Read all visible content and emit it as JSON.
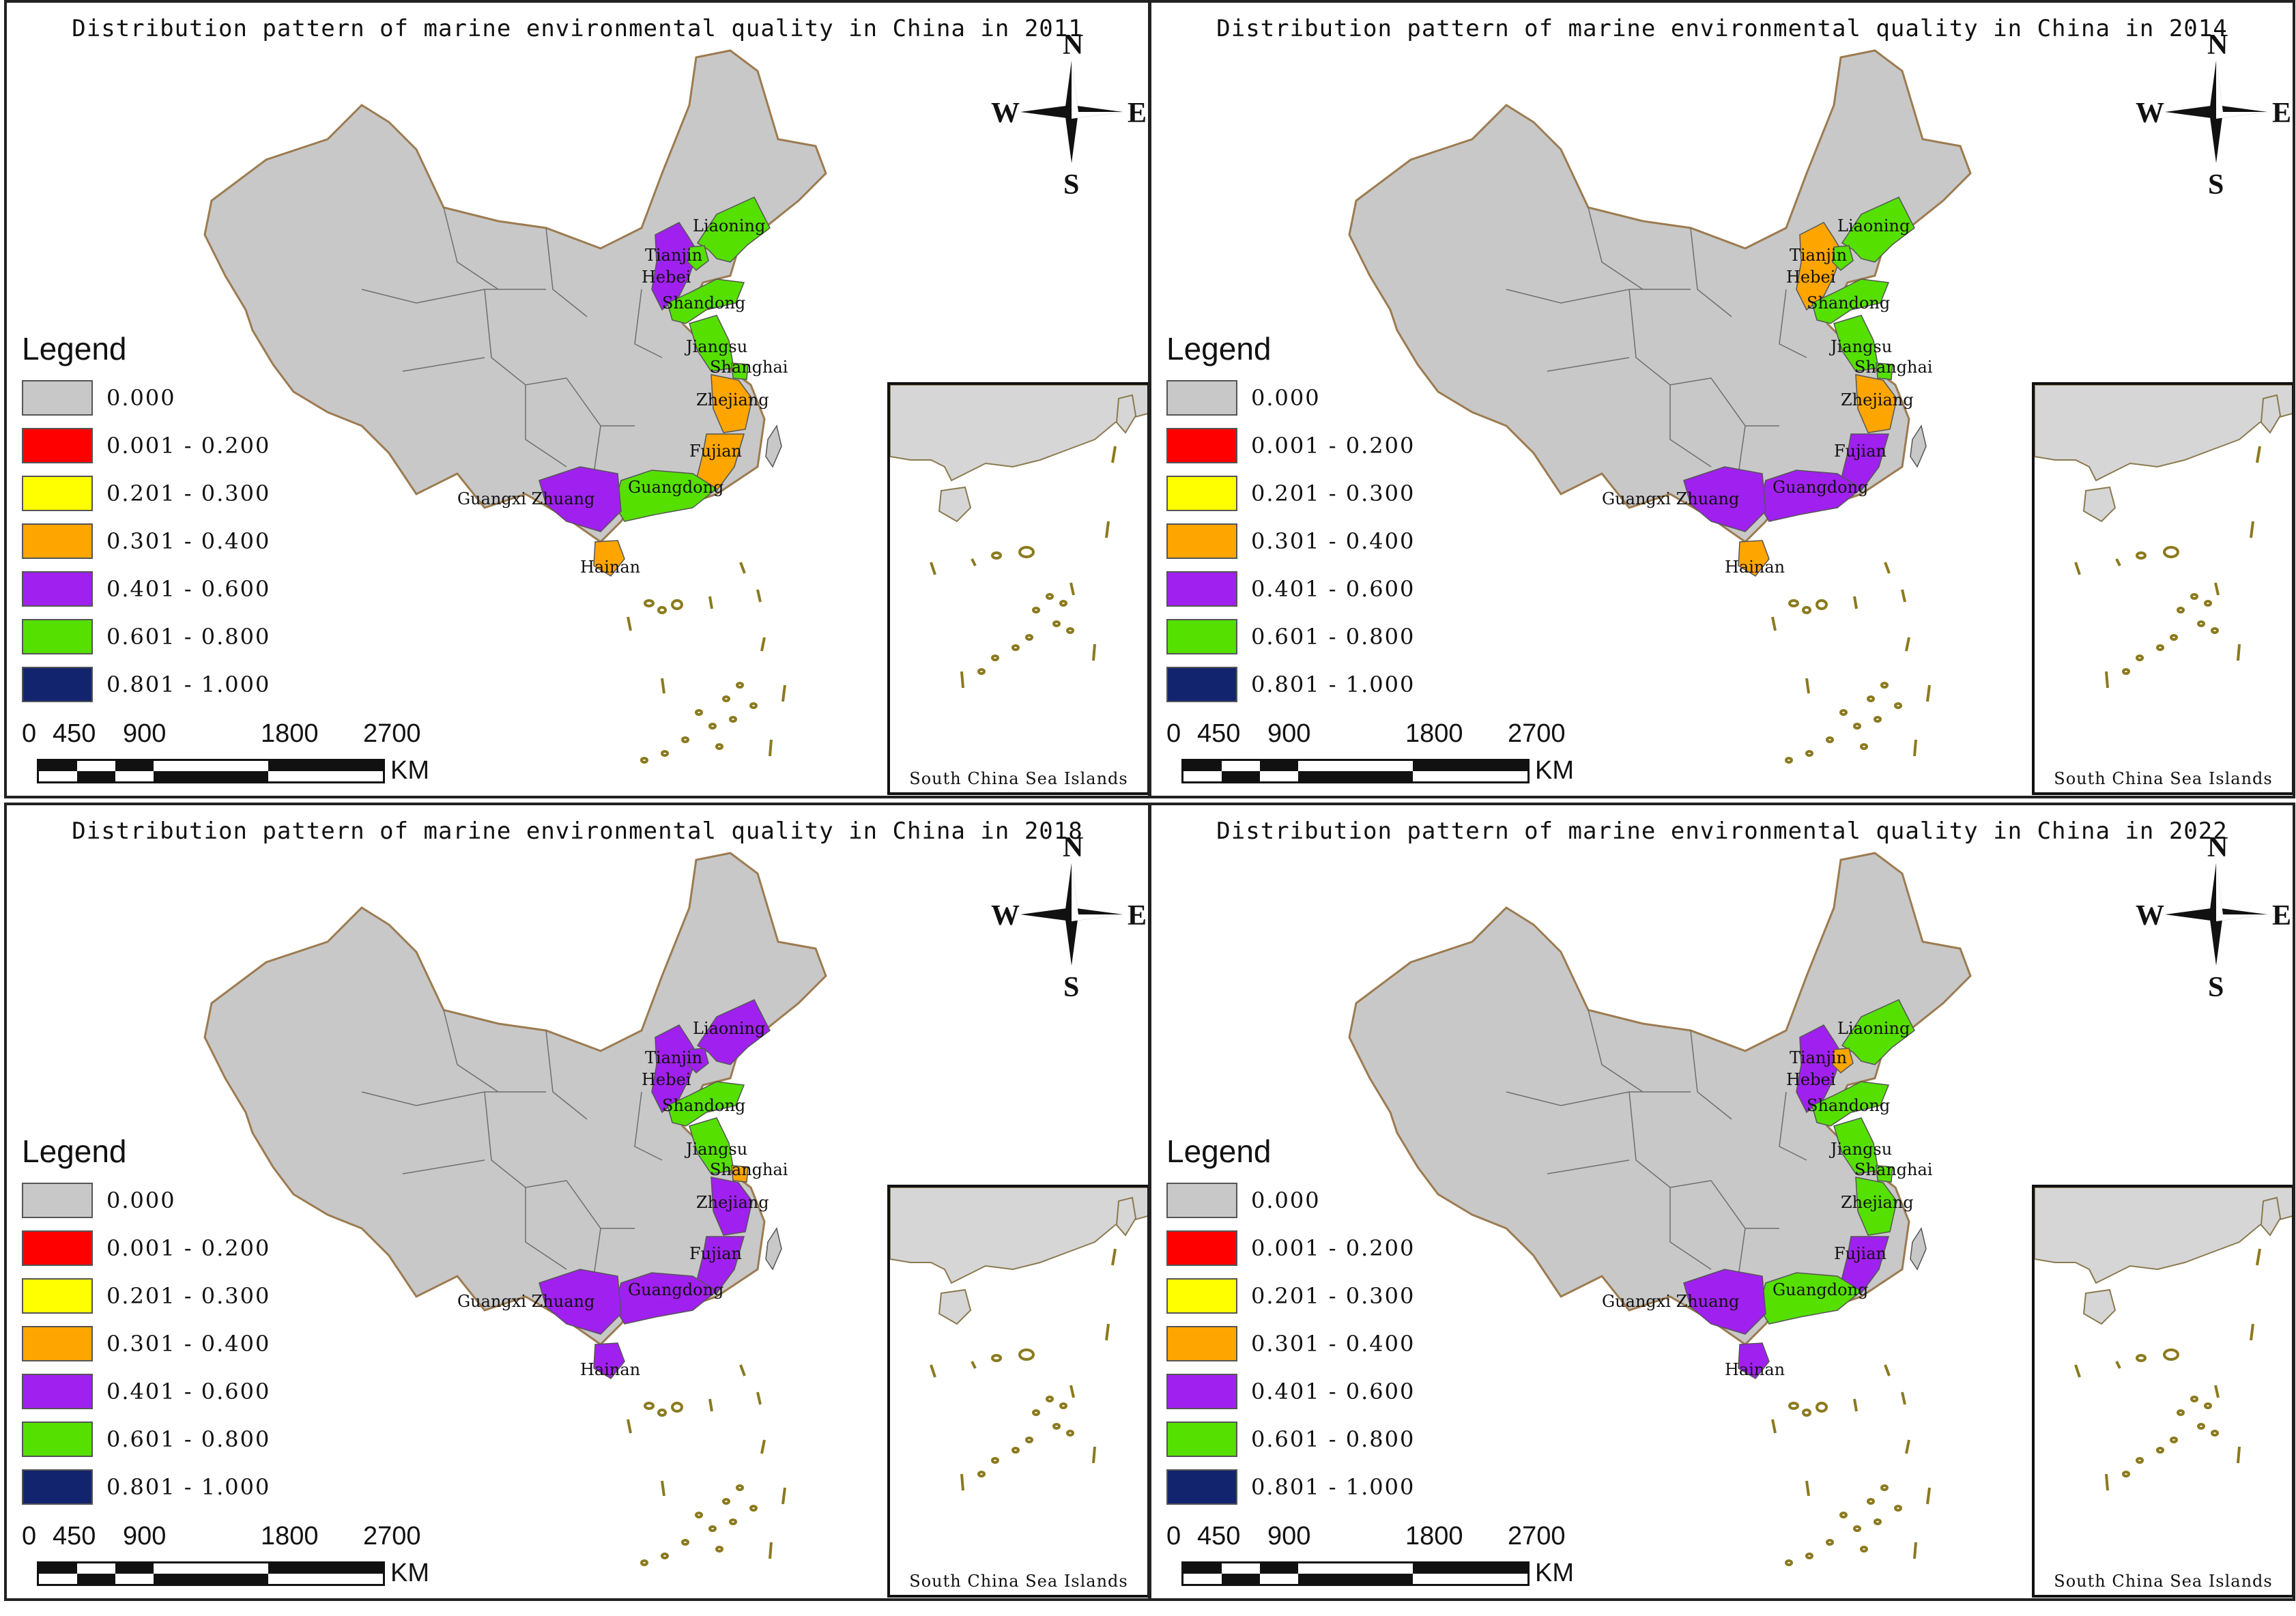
{
  "legend": {
    "title": "Legend",
    "classes": [
      {
        "label": "0.000",
        "color": "#c8c8c8"
      },
      {
        "label": "0.001 - 0.200",
        "color": "#ff0000"
      },
      {
        "label": "0.201 - 0.300",
        "color": "#ffff00"
      },
      {
        "label": "0.301 - 0.400",
        "color": "#ffa500"
      },
      {
        "label": "0.401 - 0.600",
        "color": "#a020f0"
      },
      {
        "label": "0.601 - 0.800",
        "color": "#55e000"
      },
      {
        "label": "0.801 - 1.000",
        "color": "#13246e"
      }
    ]
  },
  "scale": {
    "ticks": [
      "0",
      "450",
      "900",
      "1800",
      "2700"
    ],
    "unit": "KM"
  },
  "compass": {
    "n": "N",
    "s": "S",
    "e": "E",
    "w": "W"
  },
  "inset_label": "South China Sea Islands",
  "province_names": {
    "liaoning": "Liaoning",
    "tianjin": "Tianjin",
    "hebei": "Hebei",
    "shandong": "Shandong",
    "jiangsu": "Jiangsu",
    "shanghai": "Shanghai",
    "zhejiang": "Zhejiang",
    "fujian": "Fujian",
    "guangdong": "Guangdong",
    "guangxi": "Guangxi Zhuang",
    "hainan": "Hainan"
  },
  "panels": [
    {
      "title": "Distribution pattern of marine environmental quality in China in 2011",
      "colors": {
        "liaoning": "#55e000",
        "tianjin": "#55e000",
        "hebei": "#a020f0",
        "shandong": "#55e000",
        "jiangsu": "#55e000",
        "shanghai": "#55e000",
        "zhejiang": "#ffa500",
        "fujian": "#ffa500",
        "guangdong": "#55e000",
        "guangxi": "#a020f0",
        "hainan": "#ffa500"
      }
    },
    {
      "title": "Distribution pattern of marine environmental quality in China in 2014",
      "colors": {
        "liaoning": "#55e000",
        "tianjin": "#55e000",
        "hebei": "#ffa500",
        "shandong": "#55e000",
        "jiangsu": "#55e000",
        "shanghai": "#55e000",
        "zhejiang": "#ffa500",
        "fujian": "#a020f0",
        "guangdong": "#a020f0",
        "guangxi": "#a020f0",
        "hainan": "#ffa500"
      }
    },
    {
      "title": "Distribution pattern of marine environmental quality in China in 2018",
      "colors": {
        "liaoning": "#a020f0",
        "tianjin": "#a020f0",
        "hebei": "#a020f0",
        "shandong": "#55e000",
        "jiangsu": "#55e000",
        "shanghai": "#ffa500",
        "zhejiang": "#a020f0",
        "fujian": "#a020f0",
        "guangdong": "#a020f0",
        "guangxi": "#a020f0",
        "hainan": "#a020f0"
      }
    },
    {
      "title": "Distribution pattern of marine environmental quality in China in 2022",
      "colors": {
        "liaoning": "#55e000",
        "tianjin": "#ffa500",
        "hebei": "#a020f0",
        "shandong": "#55e000",
        "jiangsu": "#55e000",
        "shanghai": "#55e000",
        "zhejiang": "#55e000",
        "fujian": "#a020f0",
        "guangdong": "#55e000",
        "guangxi": "#a020f0",
        "hainan": "#a020f0"
      }
    }
  ]
}
